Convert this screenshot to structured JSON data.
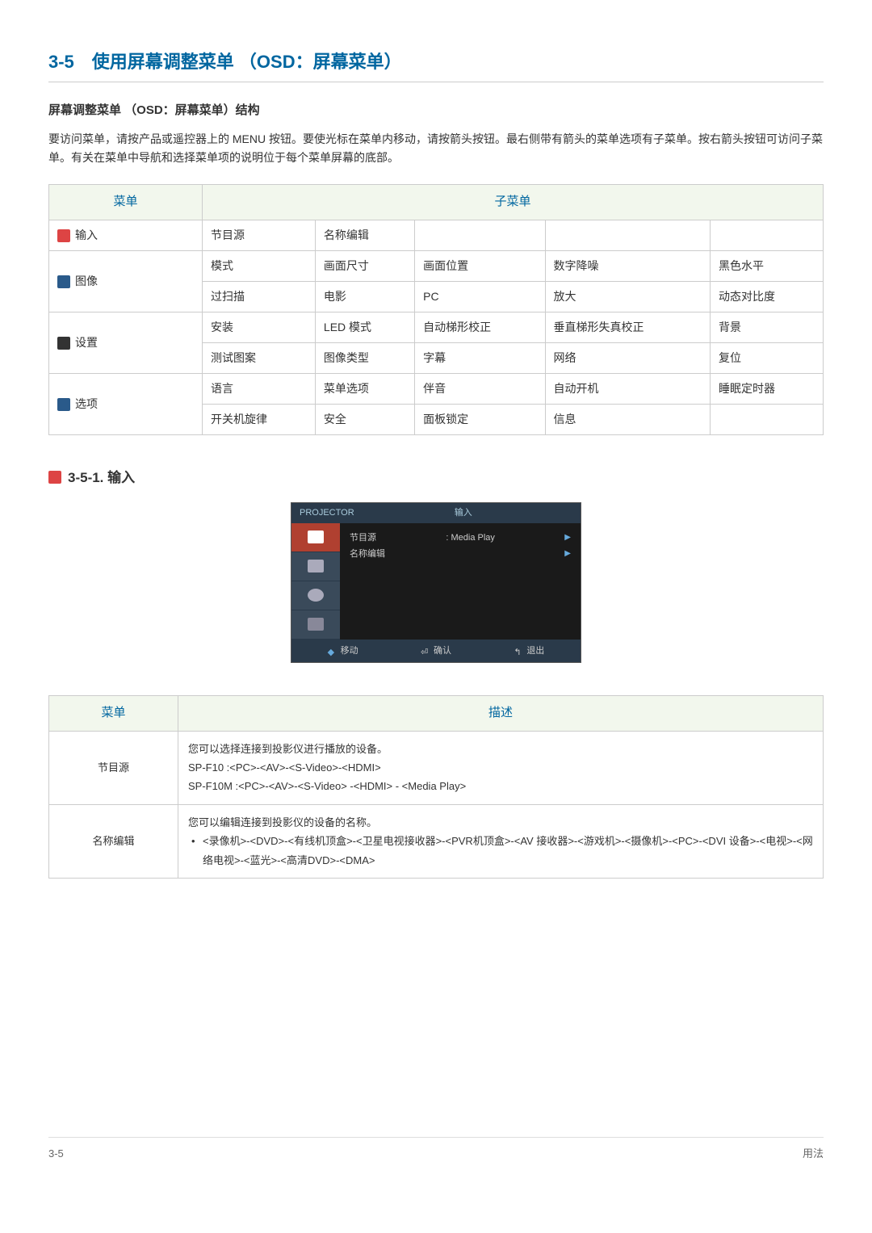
{
  "title": "3-5　使用屏幕调整菜单 （OSD：屏幕菜单）",
  "subtitle": "屏幕调整菜单 （OSD：屏幕菜单）结构",
  "intro": "要访问菜单，请按产品或遥控器上的 MENU 按钮。要使光标在菜单内移动，请按箭头按钮。最右侧带有箭头的菜单选项有子菜单。按右箭头按钮可访问子菜单。有关在菜单中导航和选择菜单项的说明位于每个菜单屏幕的底部。",
  "menu_table": {
    "headers": [
      "菜单",
      "子菜单"
    ],
    "rows": [
      {
        "menu": "输入",
        "icon_color": "#d44",
        "cells": [
          "节目源",
          "名称编辑",
          "",
          "",
          ""
        ]
      },
      {
        "menu": "图像",
        "icon_color": "#2a5a8a",
        "cells": [
          "模式",
          "画面尺寸",
          "画面位置",
          "数字降噪",
          "黑色水平"
        ]
      },
      {
        "menu": "",
        "cells": [
          "过扫描",
          "电影",
          "PC",
          "放大",
          "动态对比度"
        ]
      },
      {
        "menu": "设置",
        "icon_color": "#333",
        "cells": [
          "安装",
          "LED 模式",
          "自动梯形校正",
          "垂直梯形失真校正",
          "背景"
        ]
      },
      {
        "menu": "",
        "cells": [
          "测试图案",
          "图像类型",
          "字幕",
          "网络",
          "复位"
        ]
      },
      {
        "menu": "选项",
        "icon_color": "#2a5a8a",
        "cells": [
          "语言",
          "菜单选项",
          "伴音",
          "自动开机",
          "睡眠定时器"
        ]
      },
      {
        "menu": "",
        "cells": [
          "开关机旋律",
          "安全",
          "面板锁定",
          "信息",
          ""
        ]
      }
    ]
  },
  "sub_section_title": "3-5-1. 输入",
  "osd": {
    "header_left": "PROJECTOR",
    "header_right": "输入",
    "items": [
      "节目源",
      "名称编辑"
    ],
    "value": ": Media Play",
    "footer": [
      {
        "label": "移动",
        "color": "#6ad"
      },
      {
        "label": "确认",
        "color": "#fff"
      },
      {
        "label": "退出",
        "color": "#aaa"
      }
    ]
  },
  "desc_table": {
    "headers": [
      "菜单",
      "描述"
    ],
    "rows": [
      {
        "label": "节目源",
        "lines": [
          "您可以选择连接到投影仪进行播放的设备。",
          "SP-F10 :<PC>-<AV>-<S-Video>-<HDMI>",
          "SP-F10M :<PC>-<AV>-<S-Video> -<HDMI> - <Media Play>"
        ]
      },
      {
        "label": "名称编辑",
        "lines": [
          "您可以编辑连接到投影仪的设备的名称。"
        ],
        "bullet": "<录像机>-<DVD>-<有线机顶盒>-<卫星电视接收器>-<PVR机顶盒>-<AV 接收器>-<游戏机>-<摄像机>-<PC>-<DVI 设备>-<电视>-<网络电视>-<蓝光>-<高清DVD>-<DMA>"
      }
    ]
  },
  "footer": {
    "left": "3-5",
    "right": "用法"
  }
}
